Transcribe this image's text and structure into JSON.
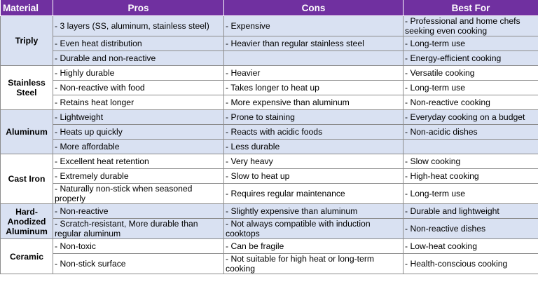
{
  "headers": {
    "material": "Material",
    "pros": "Pros",
    "cons": "Cons",
    "best_for": "Best For"
  },
  "groups": [
    {
      "material": "Triply",
      "rows": [
        {
          "pros": "- 3 layers (SS, aluminum, stainless steel)",
          "cons": "- Expensive",
          "best": "- Professional and home chefs seeking even cooking"
        },
        {
          "pros": "- Even heat distribution",
          "cons": "- Heavier than regular stainless steel",
          "best": "- Long-term use"
        },
        {
          "pros": "- Durable and non-reactive",
          "cons": "",
          "best": "- Energy-efficient cooking"
        }
      ]
    },
    {
      "material": "Stainless Steel",
      "rows": [
        {
          "pros": "- Highly durable",
          "cons": "- Heavier",
          "best": "- Versatile cooking"
        },
        {
          "pros": "- Non-reactive with food",
          "cons": "- Takes longer to heat up",
          "best": "- Long-term use"
        },
        {
          "pros": "- Retains heat longer",
          "cons": "- More expensive than aluminum",
          "best": "- Non-reactive cooking"
        }
      ]
    },
    {
      "material": "Aluminum",
      "rows": [
        {
          "pros": "- Lightweight",
          "cons": "- Prone to staining",
          "best": "- Everyday cooking on a budget"
        },
        {
          "pros": "- Heats up quickly",
          "cons": "- Reacts with acidic foods",
          "best": "- Non-acidic dishes"
        },
        {
          "pros": "- More affordable",
          "cons": "- Less durable",
          "best": ""
        }
      ]
    },
    {
      "material": "Cast Iron",
      "rows": [
        {
          "pros": "- Excellent heat retention",
          "cons": "- Very heavy",
          "best": "- Slow cooking"
        },
        {
          "pros": "- Extremely durable",
          "cons": "- Slow to heat up",
          "best": "- High-heat cooking"
        },
        {
          "pros": "- Naturally non-stick when seasoned properly",
          "cons": "- Requires regular maintenance",
          "best": "- Long-term use"
        }
      ]
    },
    {
      "material": "Hard-Anodized Aluminum",
      "rows": [
        {
          "pros": "- Non-reactive",
          "cons": "- Slightly expensive than aluminum",
          "best": "- Durable and lightweight"
        },
        {
          "pros": "- Scratch-resistant, More durable than regular aluminum",
          "cons": "- Not always compatible with induction cooktops",
          "best": "- Non-reactive dishes"
        }
      ]
    },
    {
      "material": "Ceramic",
      "rows": [
        {
          "pros": "- Non-toxic",
          "cons": "- Can be fragile",
          "best": "- Low-heat cooking"
        },
        {
          "pros": "- Non-stick surface",
          "cons": "- Not suitable for high heat or long-term cooking",
          "best": "- Health-conscious cooking"
        }
      ]
    }
  ]
}
